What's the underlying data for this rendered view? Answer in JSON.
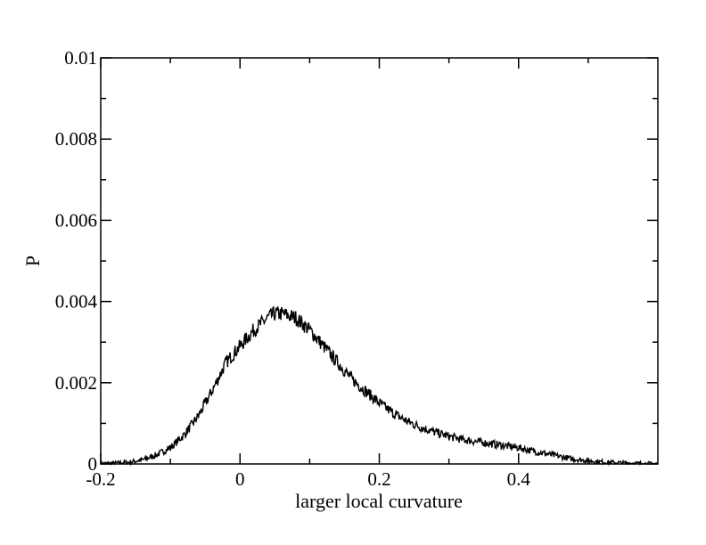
{
  "chart_data": {
    "type": "line",
    "title": "",
    "xlabel": "larger local curvature",
    "ylabel": "P",
    "xlim": [
      -0.2,
      0.6
    ],
    "ylim": [
      0,
      0.01
    ],
    "grid": false,
    "x_ticks": [
      {
        "value": -0.2,
        "label": "-0.2"
      },
      {
        "value": 0,
        "label": "0"
      },
      {
        "value": 0.2,
        "label": "0.2"
      },
      {
        "value": 0.4,
        "label": "0.4"
      }
    ],
    "y_ticks": [
      {
        "value": 0,
        "label": "0"
      },
      {
        "value": 0.002,
        "label": "0.002"
      },
      {
        "value": 0.004,
        "label": "0.004"
      },
      {
        "value": 0.006,
        "label": "0.006"
      },
      {
        "value": 0.008,
        "label": "0.008"
      },
      {
        "value": 0.01,
        "label": "0.01"
      }
    ],
    "series": [
      {
        "color": "#000000",
        "x": [
          -0.2,
          -0.18,
          -0.16,
          -0.14,
          -0.12,
          -0.1,
          -0.08,
          -0.06,
          -0.04,
          -0.02,
          0,
          0.02,
          0.04,
          0.05,
          0.06,
          0.08,
          0.1,
          0.12,
          0.14,
          0.16,
          0.18,
          0.2,
          0.22,
          0.24,
          0.26,
          0.28,
          0.3,
          0.32,
          0.34,
          0.36,
          0.38,
          0.4,
          0.42,
          0.44,
          0.46,
          0.48,
          0.5,
          0.52,
          0.54,
          0.56,
          0.58,
          0.6
        ],
        "y": [
          1e-05,
          2e-05,
          4e-05,
          0.0001,
          0.00022,
          0.0004,
          0.00072,
          0.00118,
          0.0018,
          0.0025,
          0.0029,
          0.0033,
          0.0036,
          0.0037,
          0.0037,
          0.0036,
          0.0033,
          0.0029,
          0.0025,
          0.0021,
          0.0018,
          0.0015,
          0.00125,
          0.00105,
          0.0009,
          0.00078,
          0.00068,
          0.0006,
          0.00055,
          0.0005,
          0.00045,
          0.0004,
          0.00032,
          0.00025,
          0.00018,
          0.00012,
          8e-05,
          5e-05,
          3e-05,
          2e-05,
          1e-05,
          1e-05
        ]
      }
    ]
  }
}
